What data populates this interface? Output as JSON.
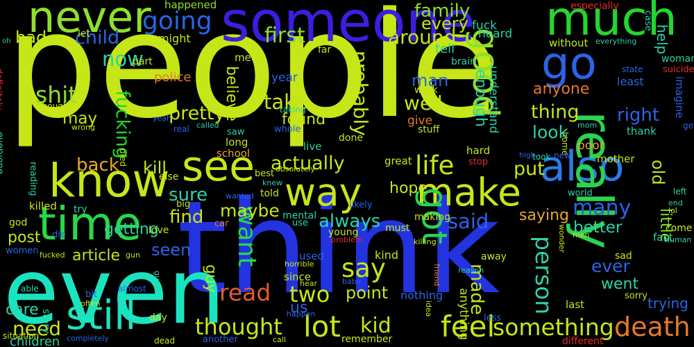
{
  "words": [
    {
      "text": "people",
      "color": "#c7e617"
    },
    {
      "text": "think",
      "color": "#2333e0"
    },
    {
      "text": "even",
      "color": "#1ae4c0"
    },
    {
      "text": "someone",
      "color": "#3a1fe0"
    },
    {
      "text": "much",
      "color": "#22d62e"
    },
    {
      "text": "never",
      "color": "#8fe02a"
    },
    {
      "text": "know",
      "color": "#c7e617"
    },
    {
      "text": "time",
      "color": "#27d84a"
    },
    {
      "text": "see",
      "color": "#c7e617"
    },
    {
      "text": "way",
      "color": "#c7e617"
    },
    {
      "text": "make",
      "color": "#c7e617"
    },
    {
      "text": "also",
      "color": "#2a7be6"
    },
    {
      "text": "really",
      "color": "#2bd44f"
    },
    {
      "text": "go",
      "color": "#2a64e6"
    },
    {
      "text": "good",
      "color": "#8fe02a"
    },
    {
      "text": "got",
      "color": "#2bd44f"
    },
    {
      "text": "still",
      "color": "#1ae4c0"
    },
    {
      "text": "death",
      "color": "#e6792a"
    },
    {
      "text": "something",
      "color": "#c7e617"
    },
    {
      "text": "feel",
      "color": "#c7e617"
    },
    {
      "text": "life",
      "color": "#c7e617"
    },
    {
      "text": "say",
      "color": "#c7e617"
    },
    {
      "text": "lot",
      "color": "#c7e617"
    },
    {
      "text": "thought",
      "color": "#c7e617"
    },
    {
      "text": "want",
      "color": "#27d84a"
    },
    {
      "text": "person",
      "color": "#2ad4a8"
    },
    {
      "text": "read",
      "color": "#e65a2a"
    },
    {
      "text": "two",
      "color": "#c7e617"
    },
    {
      "text": "kid",
      "color": "#c7e617"
    },
    {
      "text": "going",
      "color": "#2a64e6"
    },
    {
      "text": "first",
      "color": "#8fe02a"
    },
    {
      "text": "around",
      "color": "#c7e617"
    },
    {
      "text": "family",
      "color": "#8fe02a"
    },
    {
      "text": "every",
      "color": "#c7e617"
    },
    {
      "text": "child",
      "color": "#2a64e6"
    },
    {
      "text": "bad",
      "color": "#c7e617"
    },
    {
      "text": "now",
      "color": "#2ad4a8"
    },
    {
      "text": "shit",
      "color": "#8fe02a"
    },
    {
      "text": "fucking",
      "color": "#22d62e"
    },
    {
      "text": "pretty",
      "color": "#c7e617"
    },
    {
      "text": "take",
      "color": "#c7e617"
    },
    {
      "text": "well",
      "color": "#c7e617"
    },
    {
      "text": "probably",
      "color": "#c7e617"
    },
    {
      "text": "believe",
      "color": "#c7e617"
    },
    {
      "text": "found",
      "color": "#c7e617"
    },
    {
      "text": "thing",
      "color": "#c7e617"
    },
    {
      "text": "right",
      "color": "#2a64e6"
    },
    {
      "text": "look",
      "color": "#2ad4a8"
    },
    {
      "text": "many",
      "color": "#2a64e6"
    },
    {
      "text": "put",
      "color": "#c7e617"
    },
    {
      "text": "back",
      "color": "#e6a82a"
    },
    {
      "text": "kill",
      "color": "#c7e617"
    },
    {
      "text": "actually",
      "color": "#c7e617"
    },
    {
      "text": "sure",
      "color": "#2ad4a8"
    },
    {
      "text": "maybe",
      "color": "#c7e617"
    },
    {
      "text": "find",
      "color": "#c7e617"
    },
    {
      "text": "getting",
      "color": "#2ad4a8"
    },
    {
      "text": "always",
      "color": "#2ad4a8"
    },
    {
      "text": "said",
      "color": "#2a64e6"
    },
    {
      "text": "saying",
      "color": "#e6a82a"
    },
    {
      "text": "better",
      "color": "#2ad4a8"
    },
    {
      "text": "post",
      "color": "#c7e617"
    },
    {
      "text": "seen",
      "color": "#2a64e6"
    },
    {
      "text": "article",
      "color": "#c7e617"
    },
    {
      "text": "guy",
      "color": "#c7e617"
    },
    {
      "text": "point",
      "color": "#c7e617"
    },
    {
      "text": "need",
      "color": "#c7e617"
    },
    {
      "text": "care",
      "color": "#2ad4a8"
    },
    {
      "text": "children",
      "color": "#2ad4a8"
    },
    {
      "text": "ever",
      "color": "#2a64e6"
    },
    {
      "text": "went",
      "color": "#2ad4a8"
    },
    {
      "text": "trying",
      "color": "#2a64e6"
    },
    {
      "text": "made",
      "color": "#c7e617"
    },
    {
      "text": "little",
      "color": "#8fe02a"
    },
    {
      "text": "old",
      "color": "#c7e617"
    },
    {
      "text": "help",
      "color": "#2ad4a8"
    },
    {
      "text": "anyone",
      "color": "#e6792a"
    },
    {
      "text": "enough",
      "color": "#2ad4a8"
    },
    {
      "text": "man",
      "color": "#2a64e6"
    },
    {
      "text": "hope",
      "color": "#c7e617"
    },
    {
      "text": "police",
      "color": "#e6792a"
    },
    {
      "text": "may",
      "color": "#c7e617"
    },
    {
      "text": "us",
      "color": "#2a64e6"
    },
    {
      "text": "fuck",
      "color": "#2ad4a8"
    },
    {
      "text": "tell",
      "color": "#2ad4a8"
    },
    {
      "text": "heard",
      "color": "#2ad4a8"
    },
    {
      "text": "let",
      "color": "#c7e617"
    },
    {
      "text": "might",
      "color": "#c7e617"
    },
    {
      "text": "part",
      "color": "#c7e617"
    },
    {
      "text": "mean",
      "color": "#c7e617"
    },
    {
      "text": "happened",
      "color": "#8fe02a"
    },
    {
      "text": "especially",
      "color": "#e62a2a"
    },
    {
      "text": "case",
      "color": "#2ad4a8"
    },
    {
      "text": "without",
      "color": "#c7e617"
    },
    {
      "text": "woman",
      "color": "#2ad4a8"
    },
    {
      "text": "everything",
      "color": "#2ad4a8"
    },
    {
      "text": "far",
      "color": "#c7e617"
    },
    {
      "text": "brain",
      "color": "#2ad4a8"
    },
    {
      "text": "state",
      "color": "#2a64e6"
    },
    {
      "text": "suicide",
      "color": "#e62a2a"
    },
    {
      "text": "year",
      "color": "#2a64e6"
    },
    {
      "text": "least",
      "color": "#2a64e6"
    },
    {
      "text": "work",
      "color": "#c7e617"
    },
    {
      "text": "understand",
      "color": "#2ad4a8"
    },
    {
      "text": "imagine",
      "color": "#2a64e6"
    },
    {
      "text": "taking",
      "color": "#2ad4a8"
    },
    {
      "text": "give",
      "color": "#e6792a"
    },
    {
      "text": "stuff",
      "color": "#c7e617"
    },
    {
      "text": "thank",
      "color": "#2ad4a8"
    },
    {
      "text": "gets",
      "color": "#2a64e6"
    },
    {
      "text": "mom",
      "color": "#2ad4a8"
    },
    {
      "text": "yeah",
      "color": "#2a64e6"
    },
    {
      "text": "real",
      "color": "#2a64e6"
    },
    {
      "text": "called",
      "color": "#2ad4a8"
    },
    {
      "text": "saw",
      "color": "#2ad4a8"
    },
    {
      "text": "whole",
      "color": "#2a64e6"
    },
    {
      "text": "done",
      "color": "#c7e617"
    },
    {
      "text": "home",
      "color": "#c7e617"
    },
    {
      "text": "poor",
      "color": "#e6a82a"
    },
    {
      "text": "long",
      "color": "#c7e617"
    },
    {
      "text": "live",
      "color": "#2ad4a8"
    },
    {
      "text": "hard",
      "color": "#c7e617"
    },
    {
      "text": "school",
      "color": "#e6a82a"
    },
    {
      "text": "died",
      "color": "#c7e617"
    },
    {
      "text": "great",
      "color": "#c7e617"
    },
    {
      "text": "stop",
      "color": "#e62a2a"
    },
    {
      "text": "high",
      "color": "#2a64e6"
    },
    {
      "text": "took",
      "color": "#2ad4a8"
    },
    {
      "text": "new",
      "color": "#2a64e6"
    },
    {
      "text": "mother",
      "color": "#c7e617"
    },
    {
      "text": "else",
      "color": "#c7e617"
    },
    {
      "text": "best",
      "color": "#c7e617"
    },
    {
      "text": "absolutely",
      "color": "#c7e617"
    },
    {
      "text": "reading",
      "color": "#2ad4a8"
    },
    {
      "text": "knew",
      "color": "#2ad4a8"
    },
    {
      "text": "told",
      "color": "#c7e617"
    },
    {
      "text": "wanted",
      "color": "#2a64e6"
    },
    {
      "text": "big",
      "color": "#c7e617"
    },
    {
      "text": "world",
      "color": "#2ad4a8"
    },
    {
      "text": "left",
      "color": "#2ad4a8"
    },
    {
      "text": "end",
      "color": "#2ad4a8"
    },
    {
      "text": "lol",
      "color": "#c7e617"
    },
    {
      "text": "come",
      "color": "#c7e617"
    },
    {
      "text": "human",
      "color": "#2ad4a8"
    },
    {
      "text": "killed",
      "color": "#c7e617"
    },
    {
      "text": "try",
      "color": "#2ad4a8"
    },
    {
      "text": "likely",
      "color": "#2a64e6"
    },
    {
      "text": "god",
      "color": "#c7e617"
    },
    {
      "text": "die",
      "color": "#2a64e6"
    },
    {
      "text": "car",
      "color": "#e6792a"
    },
    {
      "text": "mental",
      "color": "#2ad4a8"
    },
    {
      "text": "use",
      "color": "#2ad4a8"
    },
    {
      "text": "must",
      "color": "#c7e617"
    },
    {
      "text": "making",
      "color": "#c7e617"
    },
    {
      "text": "young",
      "color": "#c7e617"
    },
    {
      "text": "problem",
      "color": "#e62a2a"
    },
    {
      "text": "killing",
      "color": "#c7e617"
    },
    {
      "text": "wonder",
      "color": "#c7e617"
    },
    {
      "text": "men",
      "color": "#c7e617"
    },
    {
      "text": "fact",
      "color": "#2ad4a8"
    },
    {
      "text": "love",
      "color": "#c7e617"
    },
    {
      "text": "women",
      "color": "#2a64e6"
    },
    {
      "text": "fucked",
      "color": "#c7e617"
    },
    {
      "text": "gun",
      "color": "#c7e617"
    },
    {
      "text": "used",
      "color": "#2a64e6"
    },
    {
      "text": "horrible",
      "color": "#c7e617"
    },
    {
      "text": "kind",
      "color": "#c7e617"
    },
    {
      "text": "away",
      "color": "#c7e617"
    },
    {
      "text": "sad",
      "color": "#c7e617"
    },
    {
      "text": "sorry",
      "color": "#c7e617"
    },
    {
      "text": "last",
      "color": "#c7e617"
    },
    {
      "text": "able",
      "color": "#2ad4a8"
    },
    {
      "text": "almost",
      "color": "#2a64e6"
    },
    {
      "text": "guess",
      "color": "#2ad4a8"
    },
    {
      "text": "since",
      "color": "#c7e617"
    },
    {
      "text": "hear",
      "color": "#c7e617"
    },
    {
      "text": "baby",
      "color": "#2a64e6"
    },
    {
      "text": "friend",
      "color": "#e6792a"
    },
    {
      "text": "reason",
      "color": "#2ad4a8"
    },
    {
      "text": "bit",
      "color": "#2a64e6"
    },
    {
      "text": "often",
      "color": "#c7e617"
    },
    {
      "text": "story",
      "color": "#2ad4a8"
    },
    {
      "text": "day",
      "color": "#c7e617"
    },
    {
      "text": "nothing",
      "color": "#2a64e6"
    },
    {
      "text": "happen",
      "color": "#2a64e6"
    },
    {
      "text": "idea",
      "color": "#c7e617"
    },
    {
      "text": "anything",
      "color": "#c7e617"
    },
    {
      "text": "less",
      "color": "#2a64e6"
    },
    {
      "text": "situation",
      "color": "#c7e617"
    },
    {
      "text": "completely",
      "color": "#2a64e6"
    },
    {
      "text": "dead",
      "color": "#c7e617"
    },
    {
      "text": "another",
      "color": "#2a64e6"
    },
    {
      "text": "call",
      "color": "#c7e617"
    },
    {
      "text": "remember",
      "color": "#c7e617"
    },
    {
      "text": "different",
      "color": "#e62a2a"
    },
    {
      "text": "definitely",
      "color": "#e62a2a"
    },
    {
      "text": "though",
      "color": "#c7e617"
    },
    {
      "text": "everyone",
      "color": "#2ad4a8"
    },
    {
      "text": "wrong",
      "color": "#c7e617"
    },
    {
      "text": "oh",
      "color": "#2ad4a8"
    }
  ]
}
